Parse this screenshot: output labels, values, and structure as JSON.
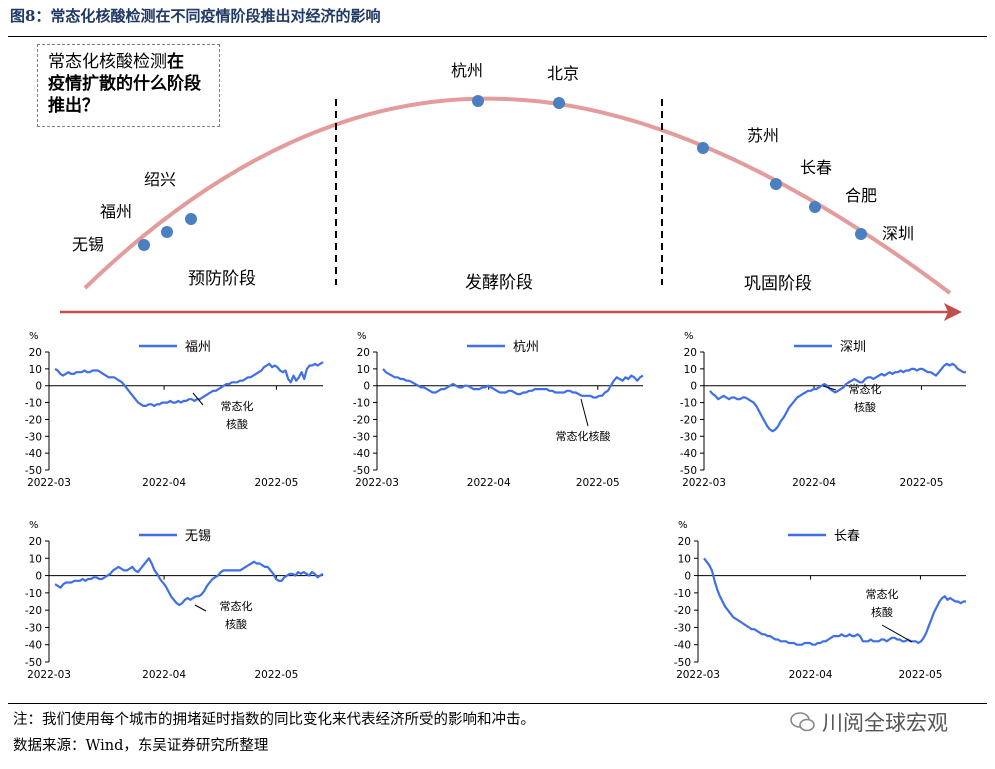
{
  "figure_title": "图8：常态化核酸检测在不同疫情阶段推出对经济的影响",
  "question": {
    "part1": "常态化核酸检测",
    "part2": "在",
    "part3": "疫情扩散的什么阶段推出？"
  },
  "stages": [
    "预防阶段",
    "发酵阶段",
    "巩固阶段"
  ],
  "curve_cities": [
    {
      "name": "无锡",
      "stage": "预防阶段"
    },
    {
      "name": "福州",
      "stage": "预防阶段"
    },
    {
      "name": "绍兴",
      "stage": "预防阶段"
    },
    {
      "name": "杭州",
      "stage": "发酵阶段"
    },
    {
      "name": "北京",
      "stage": "发酵阶段"
    },
    {
      "name": "苏州",
      "stage": "巩固阶段"
    },
    {
      "name": "长春",
      "stage": "巩固阶段"
    },
    {
      "name": "合肥",
      "stage": "巩固阶段"
    },
    {
      "name": "深圳",
      "stage": "巩固阶段"
    }
  ],
  "colors": {
    "line": "#3f6fe8",
    "curve": "#e39b9b",
    "arrow": "#c0504d",
    "dot": "#4a7fc1",
    "title": "#1f3864"
  },
  "chart_data": [
    {
      "type": "line",
      "name": "福州",
      "ylabel": "%",
      "ylim": [
        -50,
        20
      ],
      "yticks": [
        20,
        10,
        0,
        -10,
        -20,
        -30,
        -40,
        -50
      ],
      "xticks": [
        "2022-03",
        "2022-04",
        "2022-05"
      ],
      "annotation": [
        "常态化",
        "核酸"
      ],
      "values": [
        10,
        9,
        7,
        6,
        7,
        8,
        7,
        7,
        8,
        8,
        8,
        9,
        8,
        8,
        9,
        9,
        9,
        8,
        7,
        6,
        5,
        5,
        5,
        4,
        3,
        2,
        0,
        -2,
        -4,
        -6,
        -8,
        -10,
        -11,
        -12,
        -12,
        -11,
        -11,
        -12,
        -11,
        -11,
        -10,
        -10,
        -10,
        -9,
        -10,
        -10,
        -9,
        -10,
        -9,
        -9,
        -8,
        -8,
        -9,
        -8,
        -8,
        -7,
        -6,
        -5,
        -4,
        -3,
        -3,
        -2,
        -1,
        0,
        1,
        1,
        2,
        2,
        2,
        3,
        3,
        4,
        5,
        5,
        6,
        7,
        8,
        9,
        11,
        12,
        13,
        11,
        12,
        11,
        9,
        8,
        9,
        4,
        2,
        6,
        3,
        5,
        8,
        4,
        10,
        12,
        12,
        13,
        12,
        13,
        14
      ]
    },
    {
      "type": "line",
      "name": "杭州",
      "ylabel": "%",
      "ylim": [
        -50,
        20
      ],
      "yticks": [
        20,
        10,
        0,
        -10,
        -20,
        -30,
        -40,
        -50
      ],
      "xticks": [
        "2022-03",
        "2022-04",
        "2022-05"
      ],
      "annotation": [
        "常态化核酸"
      ],
      "values": [
        10,
        8,
        7,
        6,
        5,
        5,
        4,
        4,
        3,
        3,
        2,
        1,
        0,
        -1,
        -1,
        -2,
        -3,
        -4,
        -4,
        -3,
        -2,
        -2,
        -1,
        0,
        1,
        0,
        -1,
        -1,
        0,
        0,
        -1,
        -2,
        -2,
        -2,
        -1,
        -1,
        0,
        -1,
        -2,
        -3,
        -4,
        -4,
        -4,
        -3,
        -3,
        -4,
        -5,
        -5,
        -4,
        -4,
        -3,
        -3,
        -2,
        -2,
        -2,
        -2,
        -2,
        -3,
        -3,
        -4,
        -4,
        -4,
        -4,
        -3,
        -3,
        -4,
        -4,
        -5,
        -6,
        -6,
        -6,
        -6,
        -7,
        -7,
        -6,
        -6,
        -4,
        -3,
        0,
        3,
        5,
        4,
        3,
        5,
        4,
        6,
        5,
        3,
        5,
        6
      ]
    },
    {
      "type": "line",
      "name": "深圳",
      "ylabel": "%",
      "ylim": [
        -50,
        20
      ],
      "yticks": [
        20,
        10,
        0,
        -10,
        -20,
        -30,
        -40,
        -50
      ],
      "xticks": [
        "2022-03",
        "2022-04",
        "2022-05"
      ],
      "annotation": [
        "常态化",
        "核酸"
      ],
      "values": [
        -3,
        -5,
        -6,
        -8,
        -7,
        -6,
        -7,
        -8,
        -7,
        -7,
        -8,
        -8,
        -7,
        -7,
        -8,
        -9,
        -10,
        -12,
        -15,
        -18,
        -21,
        -24,
        -26,
        -27,
        -26,
        -24,
        -21,
        -19,
        -16,
        -13,
        -11,
        -9,
        -7,
        -6,
        -5,
        -4,
        -3,
        -3,
        -2,
        -2,
        -1,
        0,
        1,
        0,
        -2,
        -3,
        -4,
        -3,
        -2,
        -1,
        1,
        2,
        3,
        4,
        3,
        2,
        2,
        4,
        5,
        5,
        4,
        5,
        6,
        7,
        6,
        7,
        8,
        7,
        8,
        8,
        9,
        8,
        9,
        9,
        10,
        10,
        9,
        10,
        10,
        9,
        8,
        8,
        7,
        6,
        8,
        10,
        12,
        13,
        12,
        13,
        12,
        10,
        9,
        8,
        8
      ]
    },
    {
      "type": "line",
      "name": "无锡",
      "ylabel": "%",
      "ylim": [
        -50,
        20
      ],
      "yticks": [
        20,
        10,
        0,
        -10,
        -20,
        -30,
        -40,
        -50
      ],
      "xticks": [
        "2022-03",
        "2022-04",
        "2022-05"
      ],
      "annotation": [
        "常态化",
        "核酸"
      ],
      "values": [
        -5,
        -6,
        -7,
        -5,
        -4,
        -4,
        -4,
        -3,
        -3,
        -3,
        -2,
        -3,
        -2,
        -2,
        -1,
        -1,
        -2,
        -2,
        -1,
        0,
        1,
        3,
        4,
        5,
        4,
        3,
        3,
        4,
        5,
        3,
        2,
        4,
        6,
        8,
        10,
        7,
        3,
        1,
        -2,
        -4,
        -6,
        -9,
        -12,
        -14,
        -16,
        -17,
        -16,
        -14,
        -13,
        -14,
        -13,
        -12,
        -12,
        -11,
        -9,
        -6,
        -4,
        -2,
        -1,
        0,
        2,
        3,
        3,
        3,
        3,
        3,
        3,
        3,
        4,
        5,
        6,
        7,
        8,
        7,
        7,
        6,
        5,
        5,
        3,
        1,
        -2,
        -3,
        -3,
        -1,
        0,
        1,
        1,
        0,
        2,
        1,
        2,
        1,
        0,
        2,
        1,
        -1,
        0,
        1
      ]
    },
    {
      "type": "line",
      "name": "长春",
      "ylabel": "%",
      "ylim": [
        -50,
        20
      ],
      "yticks": [
        20,
        10,
        0,
        -10,
        -20,
        -30,
        -40,
        -50
      ],
      "xticks": [
        "2022-03",
        "2022-04",
        "2022-05"
      ],
      "annotation": [
        "常态化",
        "核酸"
      ],
      "values": [
        10,
        8,
        6,
        3,
        -3,
        -8,
        -12,
        -15,
        -18,
        -20,
        -22,
        -24,
        -25,
        -26,
        -27,
        -28,
        -29,
        -30,
        -31,
        -31,
        -32,
        -33,
        -34,
        -34,
        -35,
        -35,
        -36,
        -37,
        -37,
        -38,
        -38,
        -38,
        -39,
        -39,
        -39,
        -40,
        -40,
        -40,
        -39,
        -39,
        -39,
        -40,
        -40,
        -39,
        -39,
        -38,
        -38,
        -37,
        -36,
        -35,
        -35,
        -35,
        -34,
        -35,
        -35,
        -34,
        -35,
        -35,
        -34,
        -35,
        -38,
        -38,
        -38,
        -37,
        -38,
        -38,
        -38,
        -37,
        -37,
        -38,
        -37,
        -36,
        -36,
        -37,
        -37,
        -38,
        -38,
        -37,
        -38,
        -38,
        -38,
        -39,
        -38,
        -36,
        -33,
        -29,
        -25,
        -21,
        -18,
        -15,
        -13,
        -12,
        -14,
        -13,
        -14,
        -15,
        -15,
        -16,
        -15,
        -15
      ]
    }
  ],
  "note": "注：我们使用每个城市的拥堵延时指数的同比变化来代表经济所受的影响和冲击。",
  "source": "数据来源：Wind，东吴证券研究所整理",
  "watermark": "川阅全球宏观"
}
